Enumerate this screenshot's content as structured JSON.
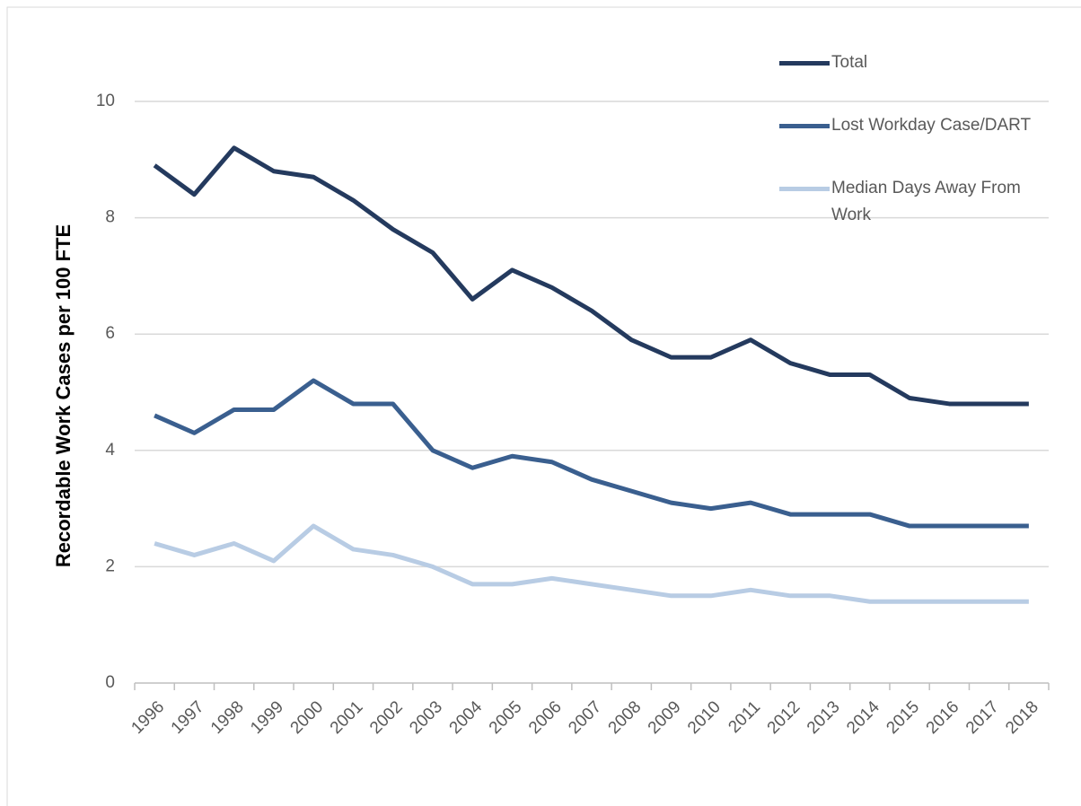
{
  "chart_data": {
    "type": "line",
    "ylabel": "Recordable Work Cases per 100 FTE",
    "categories": [
      "1996",
      "1997",
      "1998",
      "1999",
      "2000",
      "2001",
      "2002",
      "2003",
      "2004",
      "2005",
      "2006",
      "2007",
      "2008",
      "2009",
      "2010",
      "2011",
      "2012",
      "2013",
      "2014",
      "2015",
      "2016",
      "2017",
      "2018"
    ],
    "series": [
      {
        "name": "Total",
        "color": "#243a5e",
        "values": [
          8.9,
          8.4,
          9.2,
          8.8,
          8.7,
          8.3,
          7.8,
          7.4,
          6.6,
          7.1,
          6.8,
          6.4,
          5.9,
          5.6,
          5.6,
          5.9,
          5.5,
          5.3,
          5.3,
          4.9,
          4.8,
          4.8,
          4.8
        ]
      },
      {
        "name": "Lost Workday Case/DART",
        "color": "#3a5f8f",
        "values": [
          4.6,
          4.3,
          4.7,
          4.7,
          5.2,
          4.8,
          4.8,
          4.0,
          3.7,
          3.9,
          3.8,
          3.5,
          3.3,
          3.1,
          3.0,
          3.1,
          2.9,
          2.9,
          2.9,
          2.7,
          2.7,
          2.7,
          2.7
        ]
      },
      {
        "name": "Median Days Away From Work",
        "color": "#b8cce4",
        "values": [
          2.4,
          2.2,
          2.4,
          2.1,
          2.7,
          2.3,
          2.2,
          2.0,
          1.7,
          1.7,
          1.8,
          1.7,
          1.6,
          1.5,
          1.5,
          1.6,
          1.5,
          1.5,
          1.4,
          1.4,
          1.4,
          1.4,
          1.4
        ]
      }
    ],
    "ylim": [
      0,
      10
    ],
    "yticks": [
      0,
      2,
      4,
      6,
      8,
      10
    ],
    "grid": true,
    "legend": "top-right"
  }
}
